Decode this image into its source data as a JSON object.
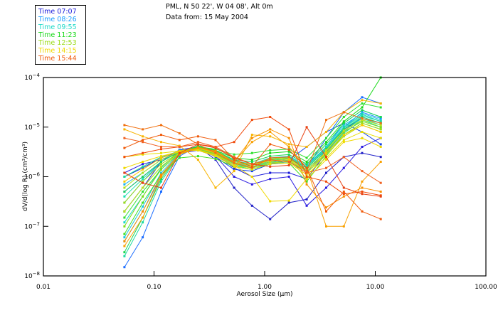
{
  "header": {
    "location": "PML, N 50 22', W 04 08', Alt 0m",
    "date_line": "Data from: 15 May 2004"
  },
  "legend": {
    "items": [
      {
        "label": "Time 07:07",
        "color": "#1a1ad9"
      },
      {
        "label": "Time 08:26",
        "color": "#1a9cff"
      },
      {
        "label": "Time 09:55",
        "color": "#1ad9c8"
      },
      {
        "label": "Time 11:23",
        "color": "#1ad91a"
      },
      {
        "label": "Time 12:53",
        "color": "#9cdc1a"
      },
      {
        "label": "Time 14:15",
        "color": "#f0d800"
      },
      {
        "label": "Time 15:44",
        "color": "#f05a0a"
      }
    ]
  },
  "chart_data": {
    "type": "line",
    "title": "",
    "xlabel": "Aerosol Size (µm)",
    "ylabel": "dV/d(log R) (cm³/cm³)",
    "xscale": "log",
    "yscale": "log",
    "xlim": [
      0.01,
      100
    ],
    "ylim": [
      1e-08,
      0.0001
    ],
    "x_ticks": [
      {
        "value": 0.01,
        "label": "0.01"
      },
      {
        "value": 0.1,
        "label": "0.10"
      },
      {
        "value": 1,
        "label": "1.00"
      },
      {
        "value": 10,
        "label": "10.00"
      },
      {
        "value": 100,
        "label": "100.00"
      }
    ],
    "y_ticks": [
      {
        "value": 0.0001,
        "base": "10",
        "exp": "−4"
      },
      {
        "value": 1e-05,
        "base": "10",
        "exp": "−5"
      },
      {
        "value": 1e-06,
        "base": "10",
        "exp": "−6"
      },
      {
        "value": 1e-07,
        "base": "10",
        "exp": "−7"
      },
      {
        "value": 1e-08,
        "base": "10",
        "exp": "−8"
      }
    ],
    "grid": false,
    "legend_position": "top-left (outside)",
    "x": [
      0.054,
      0.079,
      0.116,
      0.17,
      0.25,
      0.36,
      0.53,
      0.77,
      1.12,
      1.66,
      2.4,
      3.6,
      5.2,
      7.6,
      11.2
    ],
    "series": [
      {
        "name": "07:07 a",
        "color": "#2020c8",
        "values": [
          2e-07,
          6e-07,
          2e-06,
          3.5e-06,
          4e-06,
          2.2e-06,
          6e-07,
          2.6e-07,
          1.4e-07,
          3e-07,
          3.5e-07,
          1.2e-06,
          2.5e-06,
          3e-06,
          2.5e-06
        ]
      },
      {
        "name": "07:07 b",
        "color": "#2a1ae0",
        "values": [
          1.2e-06,
          1.8e-06,
          2.2e-06,
          3e-06,
          3.4e-06,
          2.6e-06,
          1e-06,
          7e-07,
          9e-07,
          1e-06,
          2.6e-07,
          6e-07,
          1.5e-06,
          4e-06,
          6e-06
        ]
      },
      {
        "name": "07:07 c",
        "color": "#1a1ad9",
        "values": [
          1e-06,
          1.5e-06,
          2.4e-06,
          3.2e-06,
          3.6e-06,
          2.8e-06,
          1.5e-06,
          1e-06,
          1.2e-06,
          1.2e-06,
          9e-07,
          3e-06,
          9e-06,
          1.5e-05,
          1.2e-05
        ]
      },
      {
        "name": "07:07 d",
        "color": "#1040e8",
        "values": [
          5e-07,
          1e-06,
          2e-06,
          3.5e-06,
          3.8e-06,
          2.5e-06,
          1.4e-06,
          1.3e-06,
          1.8e-06,
          2.2e-06,
          4e-06,
          8e-06,
          1.2e-05,
          8e-06,
          4.5e-06
        ]
      },
      {
        "name": "08:26 a",
        "color": "#1a6cff",
        "values": [
          1.5e-08,
          6e-08,
          5e-07,
          2.6e-06,
          4.2e-06,
          3e-06,
          1.8e-06,
          1.6e-06,
          2e-06,
          2.4e-06,
          1.5e-06,
          6e-06,
          2e-05,
          4e-05,
          3e-05
        ]
      },
      {
        "name": "08:26 b",
        "color": "#1a8cff",
        "values": [
          3e-07,
          8e-07,
          2e-06,
          3.4e-06,
          3.9e-06,
          2.8e-06,
          1.6e-06,
          1.4e-06,
          1.8e-06,
          2e-06,
          1.2e-06,
          3.5e-06,
          1e-05,
          2e-05,
          1.5e-05
        ]
      },
      {
        "name": "08:26 c",
        "color": "#1aa0ff",
        "values": [
          5e-08,
          2e-07,
          1e-06,
          3e-06,
          4e-06,
          3.2e-06,
          2e-06,
          1.7e-06,
          2.2e-06,
          2.5e-06,
          1.6e-06,
          4e-06,
          1.2e-05,
          2.2e-05,
          1.6e-05
        ]
      },
      {
        "name": "08:26 d",
        "color": "#1ab4f0",
        "values": [
          7e-07,
          1.2e-06,
          2.2e-06,
          3.2e-06,
          3.8e-06,
          3e-06,
          1.8e-06,
          1.5e-06,
          1.9e-06,
          2.2e-06,
          1.3e-06,
          3e-06,
          8e-06,
          1.6e-05,
          1.2e-05
        ]
      },
      {
        "name": "09:55 a",
        "color": "#1ac8e0",
        "values": [
          6e-08,
          2.5e-07,
          1.2e-06,
          3e-06,
          4.2e-06,
          3.4e-06,
          2e-06,
          1.8e-06,
          2.4e-06,
          2.6e-06,
          1.7e-06,
          4e-06,
          1.1e-05,
          1.9e-05,
          1.4e-05
        ]
      },
      {
        "name": "09:55 b",
        "color": "#1ad9c8",
        "values": [
          1.2e-07,
          4e-07,
          1.5e-06,
          3.2e-06,
          4e-06,
          3.2e-06,
          1.9e-06,
          1.6e-06,
          2.1e-06,
          2.3e-06,
          1.5e-06,
          3.5e-06,
          9.5e-06,
          1.7e-05,
          1.3e-05
        ]
      },
      {
        "name": "09:55 c",
        "color": "#1ae0b0",
        "values": [
          4e-07,
          9e-07,
          2e-06,
          3.3e-06,
          3.9e-06,
          3e-06,
          1.8e-06,
          1.5e-06,
          2e-06,
          2.1e-06,
          1.4e-06,
          3.2e-06,
          8.5e-06,
          1.5e-05,
          1.1e-05
        ]
      },
      {
        "name": "09:55 d",
        "color": "#1ad9a0",
        "values": [
          2.5e-08,
          1.2e-07,
          8e-07,
          2.8e-06,
          4.1e-06,
          3.3e-06,
          2.1e-06,
          1.8e-06,
          2.3e-06,
          2.5e-06,
          1.6e-06,
          3.8e-06,
          1e-05,
          1.8e-05,
          1.3e-05
        ]
      },
      {
        "name": "09:55 e",
        "color": "#1ae090",
        "values": [
          1e-06,
          1.6e-06,
          2.5e-06,
          3.3e-06,
          3.7e-06,
          2.9e-06,
          1.7e-06,
          1.4e-06,
          1.9e-06,
          2e-06,
          1.3e-06,
          2.8e-06,
          7.5e-06,
          1.4e-05,
          1e-05
        ]
      },
      {
        "name": "11:23 a",
        "color": "#1ad950",
        "values": [
          3e-08,
          1.5e-07,
          9e-07,
          2.9e-06,
          4e-06,
          3.3e-06,
          2.2e-06,
          2e-06,
          2.6e-06,
          2.8e-06,
          1.8e-06,
          4.5e-06,
          1.2e-05,
          2.2e-05,
          1.6e-05
        ]
      },
      {
        "name": "11:23 b",
        "color": "#1ad91a",
        "values": [
          2e-07,
          6e-07,
          1.6e-06,
          3.1e-06,
          4.1e-06,
          3.4e-06,
          2.4e-06,
          2.2e-06,
          3e-06,
          3.2e-06,
          2e-06,
          5e-06,
          1.3e-05,
          2.5e-05,
          0.0001
        ]
      },
      {
        "name": "11:23 c",
        "color": "#30e030",
        "values": [
          1.5e-07,
          5e-07,
          1.4e-06,
          3e-06,
          4e-06,
          3.6e-06,
          2.8e-06,
          3e-06,
          3.4e-06,
          3.6e-06,
          2.4e-06,
          6e-06,
          1.6e-05,
          3e-05,
          2.5e-05
        ]
      },
      {
        "name": "11:23 d",
        "color": "#40e020",
        "values": [
          7e-08,
          3e-07,
          1.1e-06,
          2.4e-06,
          2.6e-06,
          2.3e-06,
          1.6e-06,
          1.4e-06,
          1.8e-06,
          1.9e-06,
          8e-07,
          2.6e-06,
          7e-06,
          1.2e-05,
          9e-06
        ]
      },
      {
        "name": "11:23 e",
        "color": "#20d060",
        "values": [
          5e-07,
          1e-06,
          2e-06,
          3.2e-06,
          3.8e-06,
          3e-06,
          2e-06,
          1.8e-06,
          2.3e-06,
          2.4e-06,
          1.5e-06,
          3.6e-06,
          9e-06,
          1.6e-05,
          1.2e-05
        ]
      },
      {
        "name": "12:53 a",
        "color": "#80dc1a",
        "values": [
          1e-07,
          4e-07,
          1.4e-06,
          3e-06,
          3.8e-06,
          3e-06,
          1.9e-06,
          1.7e-06,
          2.2e-06,
          2.3e-06,
          1.4e-06,
          3.2e-06,
          8e-06,
          1.3e-05,
          1e-05
        ]
      },
      {
        "name": "12:53 b",
        "color": "#9cdc1a",
        "values": [
          3e-07,
          8e-07,
          1.8e-06,
          3.1e-06,
          3.6e-06,
          2.9e-06,
          1.8e-06,
          1.6e-06,
          2e-06,
          2.1e-06,
          1.3e-06,
          2.9e-06,
          7e-06,
          1.2e-05,
          9e-06
        ]
      },
      {
        "name": "12:53 c",
        "color": "#b0e01a",
        "values": [
          6e-07,
          1.2e-06,
          2.2e-06,
          3.2e-06,
          3.5e-06,
          2.8e-06,
          1.7e-06,
          1.5e-06,
          1.9e-06,
          2e-06,
          1.2e-06,
          2.7e-06,
          6.5e-06,
          1.1e-05,
          8e-06
        ]
      },
      {
        "name": "12:53 d",
        "color": "#c0e020",
        "values": [
          2e-07,
          6e-07,
          1.6e-06,
          3e-06,
          3.7e-06,
          3.1e-06,
          2e-06,
          1.8e-06,
          2.3e-06,
          2.4e-06,
          9e-07,
          3.4e-06,
          8.5e-06,
          1.4e-05,
          1.1e-05
        ]
      },
      {
        "name": "14:15 a",
        "color": "#e8e000",
        "values": [
          2.5e-06,
          2.8e-06,
          3e-06,
          3.3e-06,
          3.4e-06,
          2.6e-06,
          1.6e-06,
          1.4e-06,
          1.8e-06,
          1.9e-06,
          1.1e-06,
          2.4e-06,
          5.5e-06,
          8e-06,
          6e-06
        ]
      },
      {
        "name": "14:15 b",
        "color": "#f0d800",
        "values": [
          1.5e-06,
          2e-06,
          2.6e-06,
          3.2e-06,
          3.5e-06,
          2.7e-06,
          1.7e-06,
          1e-06,
          3.2e-07,
          3.3e-07,
          9e-07,
          2.2e-06,
          5e-06,
          6e-06,
          4e-06
        ]
      },
      {
        "name": "14:15 c",
        "color": "#f8c800",
        "values": [
          8e-07,
          1.4e-06,
          2.4e-06,
          3.3e-06,
          3.8e-06,
          3e-06,
          1.9e-06,
          1.7e-06,
          2.1e-06,
          2.2e-06,
          1.3e-06,
          3e-06,
          7e-06,
          1.1e-05,
          8e-06
        ]
      },
      {
        "name": "14:15 d",
        "color": "#f8b400",
        "values": [
          9e-06,
          6.5e-06,
          5e-06,
          4.2e-06,
          2.2e-06,
          6e-07,
          1.3e-06,
          7e-06,
          6.5e-06,
          4.5e-06,
          4e-06,
          8e-06,
          2e-05,
          3.5e-05,
          3e-05
        ]
      },
      {
        "name": "14:15 e",
        "color": "#f8a000",
        "values": [
          4e-08,
          1.5e-07,
          1e-06,
          2.8e-06,
          3.8e-06,
          3.2e-06,
          2e-06,
          5e-06,
          8e-06,
          4e-06,
          1.5e-06,
          1e-07,
          1e-07,
          8e-07,
          2e-06
        ]
      },
      {
        "name": "14:15 f",
        "color": "#f89000",
        "values": [
          5e-08,
          2e-07,
          1.1e-06,
          2.9e-06,
          3.9e-06,
          3.3e-06,
          2e-06,
          6e-06,
          9e-06,
          6e-06,
          7e-07,
          2.4e-07,
          4e-07,
          6e-07,
          5e-07
        ]
      },
      {
        "name": "15:44 a",
        "color": "#f07010",
        "values": [
          1.1e-05,
          9e-06,
          1.1e-05,
          7.5e-06,
          4.5e-06,
          3e-06,
          1.9e-06,
          1.5e-06,
          2.4e-06,
          2.5e-06,
          1.3e-06,
          1.4e-05,
          2e-05,
          1.5e-05,
          1.2e-05
        ]
      },
      {
        "name": "15:44 b",
        "color": "#f05a0a",
        "values": [
          3.8e-06,
          5.5e-06,
          7e-06,
          5.5e-06,
          6.5e-06,
          5.5e-06,
          2.2e-06,
          1.6e-06,
          4.5e-06,
          3.5e-06,
          1.5e-06,
          2e-07,
          5e-07,
          2e-07,
          1.4e-07
        ]
      },
      {
        "name": "15:44 c",
        "color": "#f04a0a",
        "values": [
          2.5e-06,
          3e-06,
          3.6e-06,
          4e-06,
          4.5e-06,
          4e-06,
          5e-06,
          1.4e-05,
          1.6e-05,
          9e-06,
          1e-06,
          8e-07,
          4.5e-07,
          5e-07,
          4.2e-07
        ]
      },
      {
        "name": "15:44 d",
        "color": "#e84010",
        "values": [
          1.2e-06,
          7.5e-07,
          6e-07,
          3e-06,
          4.5e-06,
          3.8e-06,
          2.4e-06,
          1.8e-06,
          1.6e-06,
          1.7e-06,
          1e-05,
          2.5e-06,
          6e-07,
          4.5e-07,
          4e-07
        ]
      },
      {
        "name": "15:44 e",
        "color": "#f06020",
        "values": [
          6e-06,
          5e-06,
          4e-06,
          4e-06,
          5e-06,
          4e-06,
          2.5e-06,
          1.8e-06,
          2.2e-06,
          2e-06,
          1.2e-06,
          1.5e-06,
          2.5e-06,
          1.3e-06,
          7.5e-07
        ]
      }
    ]
  }
}
